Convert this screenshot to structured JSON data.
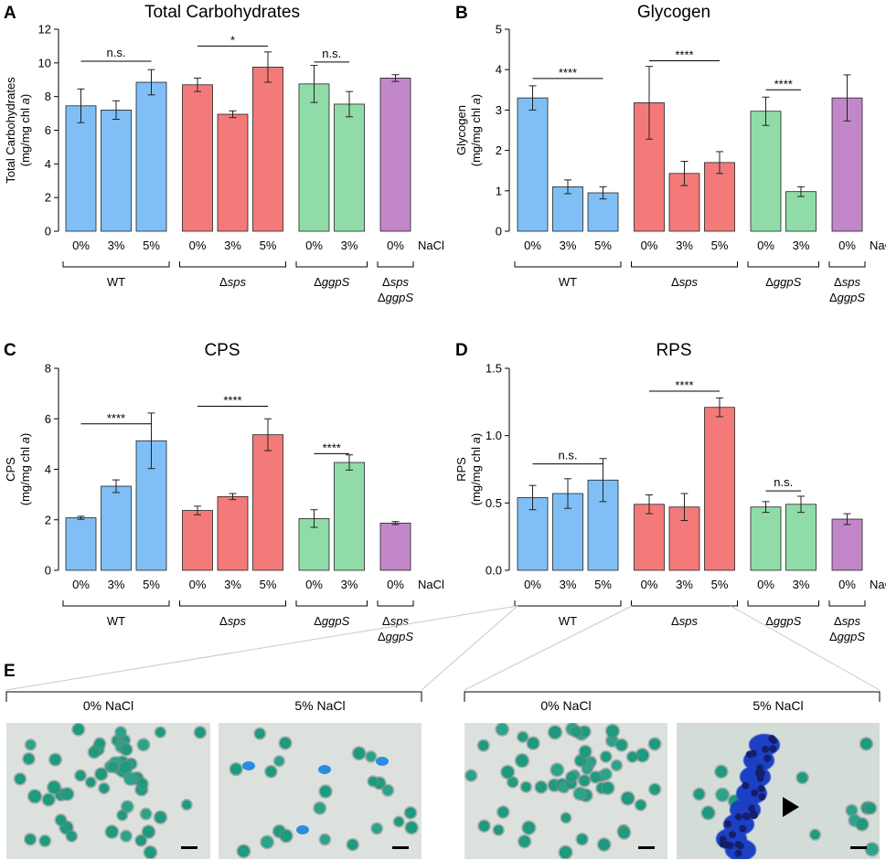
{
  "chart_data": [
    {
      "panel": "A",
      "type": "bar",
      "title": "Total Carbohydrates",
      "ylabel_lines": [
        "Total Carbohydrates",
        "(mg/mg chl a)"
      ],
      "ylim": [
        0,
        12
      ],
      "yticks": [
        "0",
        "2",
        "4",
        "6",
        "8",
        "10",
        "12"
      ],
      "ytick_values": [
        0,
        2,
        4,
        6,
        8,
        10,
        12
      ],
      "nacl_label": "NaCl",
      "bars": [
        {
          "group": "WT",
          "nacl": "0%",
          "value": 7.45,
          "err": 1.0
        },
        {
          "group": "WT",
          "nacl": "3%",
          "value": 7.2,
          "err": 0.55
        },
        {
          "group": "WT",
          "nacl": "5%",
          "value": 8.85,
          "err": 0.75
        },
        {
          "group": "Δsps",
          "nacl": "0%",
          "value": 8.7,
          "err": 0.4
        },
        {
          "group": "Δsps",
          "nacl": "3%",
          "value": 6.95,
          "err": 0.2
        },
        {
          "group": "Δsps",
          "nacl": "5%",
          "value": 9.75,
          "err": 0.9
        },
        {
          "group": "ΔggpS",
          "nacl": "0%",
          "value": 8.75,
          "err": 1.1
        },
        {
          "group": "ΔggpS",
          "nacl": "3%",
          "value": 7.55,
          "err": 0.75
        },
        {
          "group": "Δsps ΔggpS",
          "nacl": "0%",
          "value": 9.1,
          "err": 0.2
        }
      ],
      "significance": [
        {
          "from": 0,
          "to": 2,
          "label": "n.s.",
          "at": 10.1
        },
        {
          "from": 3,
          "to": 5,
          "label": "*",
          "at": 11.0
        },
        {
          "from": 6,
          "to": 7,
          "label": "n.s.",
          "at": 10.05
        }
      ]
    },
    {
      "panel": "B",
      "type": "bar",
      "title": "Glycogen",
      "ylabel_lines": [
        "Glycogen",
        "(mg/mg chl a)"
      ],
      "ylim": [
        0,
        5
      ],
      "yticks": [
        "0",
        "1",
        "2",
        "3",
        "4",
        "5"
      ],
      "ytick_values": [
        0,
        1,
        2,
        3,
        4,
        5
      ],
      "nacl_label": "NaCl",
      "bars": [
        {
          "group": "WT",
          "nacl": "0%",
          "value": 3.3,
          "err": 0.3
        },
        {
          "group": "WT",
          "nacl": "3%",
          "value": 1.1,
          "err": 0.17
        },
        {
          "group": "WT",
          "nacl": "5%",
          "value": 0.95,
          "err": 0.15
        },
        {
          "group": "Δsps",
          "nacl": "0%",
          "value": 3.18,
          "err": 0.9
        },
        {
          "group": "Δsps",
          "nacl": "3%",
          "value": 1.43,
          "err": 0.3
        },
        {
          "group": "Δsps",
          "nacl": "5%",
          "value": 1.7,
          "err": 0.27
        },
        {
          "group": "ΔggpS",
          "nacl": "0%",
          "value": 2.97,
          "err": 0.35
        },
        {
          "group": "ΔggpS",
          "nacl": "3%",
          "value": 0.98,
          "err": 0.12
        },
        {
          "group": "Δsps ΔggpS",
          "nacl": "0%",
          "value": 3.3,
          "err": 0.57
        }
      ],
      "significance": [
        {
          "from": 0,
          "to": 2,
          "label": "****",
          "at": 3.78
        },
        {
          "from": 3,
          "to": 5,
          "label": "****",
          "at": 4.22
        },
        {
          "from": 6,
          "to": 7,
          "label": "****",
          "at": 3.5
        }
      ]
    },
    {
      "panel": "C",
      "type": "bar",
      "title": "CPS",
      "ylabel_lines": [
        "CPS",
        "(mg/mg chl a)"
      ],
      "ylim": [
        0,
        8
      ],
      "yticks": [
        "0",
        "2",
        "4",
        "6",
        "8"
      ],
      "ytick_values": [
        0,
        2,
        4,
        6,
        8
      ],
      "nacl_label": "NaCl",
      "bars": [
        {
          "group": "WT",
          "nacl": "0%",
          "value": 2.08,
          "err": 0.06
        },
        {
          "group": "WT",
          "nacl": "3%",
          "value": 3.33,
          "err": 0.25
        },
        {
          "group": "WT",
          "nacl": "5%",
          "value": 5.13,
          "err": 1.1
        },
        {
          "group": "Δsps",
          "nacl": "0%",
          "value": 2.37,
          "err": 0.17
        },
        {
          "group": "Δsps",
          "nacl": "3%",
          "value": 2.92,
          "err": 0.12
        },
        {
          "group": "Δsps",
          "nacl": "5%",
          "value": 5.37,
          "err": 0.63
        },
        {
          "group": "ΔggpS",
          "nacl": "0%",
          "value": 2.05,
          "err": 0.35
        },
        {
          "group": "ΔggpS",
          "nacl": "3%",
          "value": 4.27,
          "err": 0.3
        },
        {
          "group": "Δsps ΔggpS",
          "nacl": "0%",
          "value": 1.87,
          "err": 0.06
        }
      ],
      "significance": [
        {
          "from": 0,
          "to": 2,
          "label": "****",
          "at": 5.8
        },
        {
          "from": 3,
          "to": 5,
          "label": "****",
          "at": 6.5
        },
        {
          "from": 6,
          "to": 7,
          "label": "****",
          "at": 4.62
        }
      ]
    },
    {
      "panel": "D",
      "type": "bar",
      "title": "RPS",
      "ylabel_lines": [
        "RPS",
        "(mg/mg chl a)"
      ],
      "ylim": [
        0,
        1.5
      ],
      "yticks": [
        "0.0",
        "0.5",
        "1.0",
        "1.5"
      ],
      "ytick_values": [
        0,
        0.5,
        1.0,
        1.5
      ],
      "nacl_label": "NaCl",
      "bars": [
        {
          "group": "WT",
          "nacl": "0%",
          "value": 0.54,
          "err": 0.09
        },
        {
          "group": "WT",
          "nacl": "3%",
          "value": 0.57,
          "err": 0.11
        },
        {
          "group": "WT",
          "nacl": "5%",
          "value": 0.67,
          "err": 0.16
        },
        {
          "group": "Δsps",
          "nacl": "0%",
          "value": 0.49,
          "err": 0.07
        },
        {
          "group": "Δsps",
          "nacl": "3%",
          "value": 0.47,
          "err": 0.1
        },
        {
          "group": "Δsps",
          "nacl": "5%",
          "value": 1.21,
          "err": 0.07
        },
        {
          "group": "ΔggpS",
          "nacl": "0%",
          "value": 0.47,
          "err": 0.04
        },
        {
          "group": "ΔggpS",
          "nacl": "3%",
          "value": 0.49,
          "err": 0.06
        },
        {
          "group": "Δsps ΔggpS",
          "nacl": "0%",
          "value": 0.38,
          "err": 0.04
        }
      ],
      "significance": [
        {
          "from": 0,
          "to": 2,
          "label": "n.s.",
          "at": 0.79
        },
        {
          "from": 3,
          "to": 5,
          "label": "****",
          "at": 1.33
        },
        {
          "from": 6,
          "to": 7,
          "label": "n.s.",
          "at": 0.59
        }
      ]
    }
  ],
  "panel_e": {
    "letter": "E",
    "groups": [
      {
        "name": "WT",
        "images": [
          {
            "label": "0% NaCl"
          },
          {
            "label": "5% NaCl"
          }
        ]
      },
      {
        "name": "Δsps",
        "images": [
          {
            "label": "0% NaCl"
          },
          {
            "label": "5% NaCl"
          }
        ]
      }
    ]
  },
  "colors": {
    "WT": "#7fbff5",
    "Δsps": "#f47a7a",
    "ΔggpS": "#90dca8",
    "Δsps ΔggpS": "#c287c8"
  }
}
